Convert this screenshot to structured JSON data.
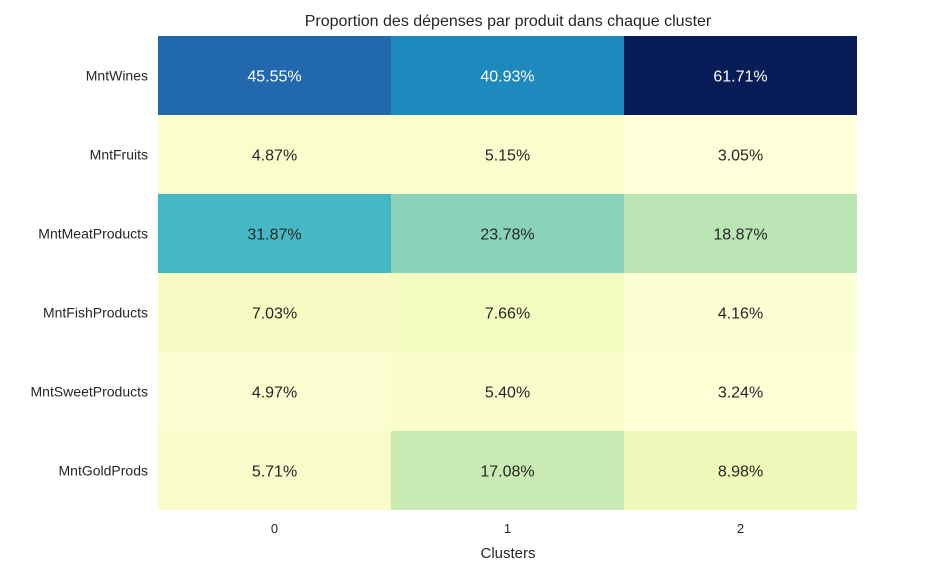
{
  "chart_data": {
    "type": "heatmap",
    "title": "Proportion des dépenses par produit dans chaque cluster",
    "xlabel": "Clusters",
    "ylabel": "",
    "x": [
      "0",
      "1",
      "2"
    ],
    "y": [
      "MntWines",
      "MntFruits",
      "MntMeatProducts",
      "MntFishProducts",
      "MntSweetProducts",
      "MntGoldProds"
    ],
    "values": [
      [
        45.55,
        40.93,
        61.71
      ],
      [
        4.87,
        5.15,
        3.05
      ],
      [
        31.87,
        23.78,
        18.87
      ],
      [
        7.03,
        7.66,
        4.16
      ],
      [
        4.97,
        5.4,
        3.24
      ],
      [
        5.71,
        17.08,
        8.98
      ]
    ],
    "labels": [
      [
        "45.55%",
        "40.93%",
        "61.71%"
      ],
      [
        "4.87%",
        "5.15%",
        "3.05%"
      ],
      [
        "31.87%",
        "23.78%",
        "18.87%"
      ],
      [
        "7.03%",
        "7.66%",
        "4.16%"
      ],
      [
        "4.97%",
        "5.40%",
        "3.24%"
      ],
      [
        "5.71%",
        "17.08%",
        "8.98%"
      ]
    ],
    "colormap": "YlGnBu",
    "colorbar": false,
    "grid": false
  }
}
